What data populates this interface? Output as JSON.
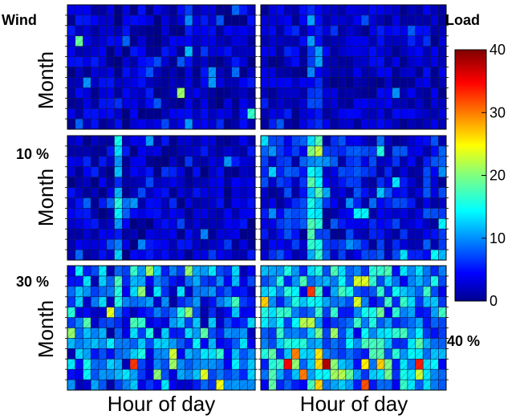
{
  "chart_data": {
    "type": "heatmap",
    "layout": "3 rows x 2 columns of month-by-hour heatmaps with shared colorbar",
    "panel_labels": [
      "Wind",
      "Load",
      "10 %",
      "30 %",
      "40 %"
    ],
    "ylabel": "Month",
    "xlabel": "Hour of day",
    "rows": 12,
    "cols": 24,
    "colorbar": {
      "colormap": "jet",
      "range": [
        0,
        40
      ],
      "ticks": [
        "0",
        "10",
        "20",
        "30",
        "40"
      ]
    },
    "panels": [
      {
        "position": "row1-left",
        "description": "mostly low values (~0-8) with scattered higher cells up to ~22"
      },
      {
        "position": "row1-right",
        "description": "low values (~0-8) with a faint vertical band near hour 7"
      },
      {
        "position": "row2-left",
        "description": "low values (~0-10) with a vertical band near hour 7 (~10-15)"
      },
      {
        "position": "row2-right",
        "description": "low to moderate values (~0-18) with a stronger band near hours 6-7"
      },
      {
        "position": "row3-left",
        "description": "moderate values (~5-25) with hot spot ~33 around month 10"
      },
      {
        "position": "row3-right",
        "description": "higher values (~5-28) with hot spots ~35-40 around month 10"
      }
    ]
  }
}
